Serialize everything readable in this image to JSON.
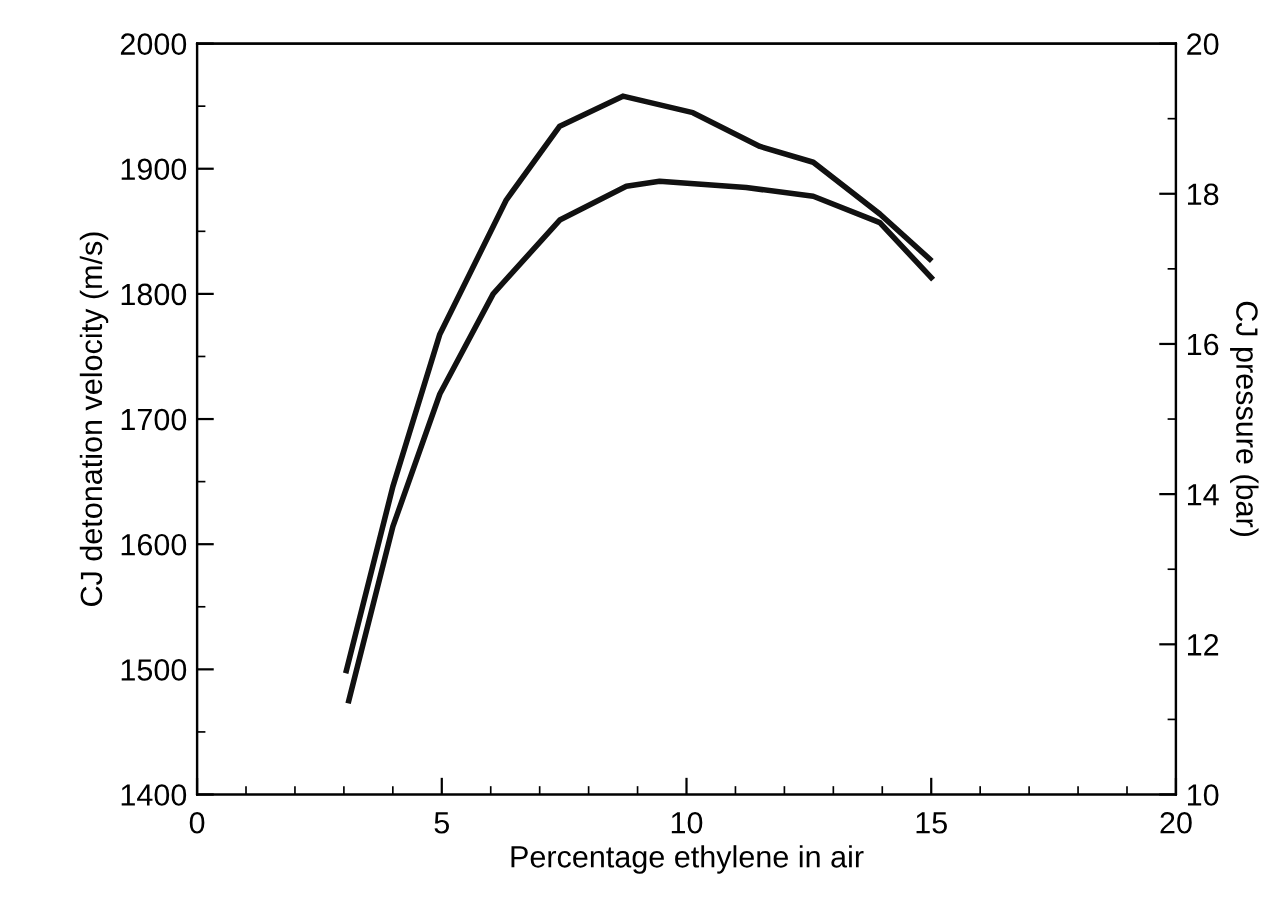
{
  "chart_data": {
    "type": "line",
    "xlabel": "Percentage ethylene in air",
    "ylabel": "CJ detonation velocity (m/s)",
    "y2label": "CJ pressure (bar)",
    "series": [
      {
        "color": "#111111",
        "axis": "y",
        "x": [
          3.1,
          4.0,
          4.96,
          6.05,
          7.41,
          8.77,
          9.45,
          11.22,
          12.59,
          13.95,
          15.0
        ],
        "values": [
          1475,
          1614,
          1720,
          1800,
          1859,
          1886,
          1890,
          1885,
          1878,
          1857,
          1813
        ]
      },
      {
        "color": "#111111",
        "axis": "y2",
        "x": [
          3.05,
          4.0,
          4.96,
          6.32,
          7.41,
          8.7,
          10.13,
          11.5,
          12.59,
          13.95,
          14.97
        ],
        "values": [
          11.65,
          14.1,
          16.13,
          17.92,
          18.9,
          19.3,
          19.08,
          18.63,
          18.42,
          17.73,
          17.13
        ]
      }
    ],
    "xlim": [
      0,
      20
    ],
    "xticks": [
      0,
      {
        "value": 1,
        "label": null
      },
      {
        "value": 2,
        "label": null
      },
      {
        "value": 3,
        "label": null
      },
      {
        "value": 4,
        "label": null
      },
      5,
      {
        "value": 6,
        "label": null
      },
      {
        "value": 7,
        "label": null
      },
      {
        "value": 8,
        "label": null
      },
      {
        "value": 9,
        "label": null
      },
      10,
      {
        "value": 11,
        "label": null
      },
      {
        "value": 12,
        "label": null
      },
      {
        "value": 13,
        "label": null
      },
      {
        "value": 14,
        "label": null
      },
      15,
      {
        "value": 16,
        "label": null
      },
      {
        "value": 17,
        "label": null
      },
      {
        "value": 18,
        "label": null
      },
      {
        "value": 19,
        "label": null
      },
      20
    ],
    "ylim": [
      1400,
      2000
    ],
    "yticks": [
      1400,
      {
        "value": 1450,
        "label": null
      },
      1500,
      {
        "value": 1550,
        "label": null
      },
      1600,
      {
        "value": 1650,
        "label": null
      },
      1700,
      {
        "value": 1750,
        "label": null
      },
      1800,
      {
        "value": 1850,
        "label": null
      },
      1900,
      {
        "value": 1950,
        "label": null
      },
      2000
    ],
    "y2lim": [
      10,
      20
    ],
    "y2ticks": [
      10,
      {
        "value": 11,
        "label": null
      },
      12,
      {
        "value": 13,
        "label": null
      },
      14,
      {
        "value": 15,
        "label": null
      },
      16,
      {
        "value": 17,
        "label": null
      },
      18,
      {
        "value": 19,
        "label": null
      },
      20
    ],
    "grid": false,
    "legend": false,
    "marker": "none",
    "line_style": "solid"
  }
}
